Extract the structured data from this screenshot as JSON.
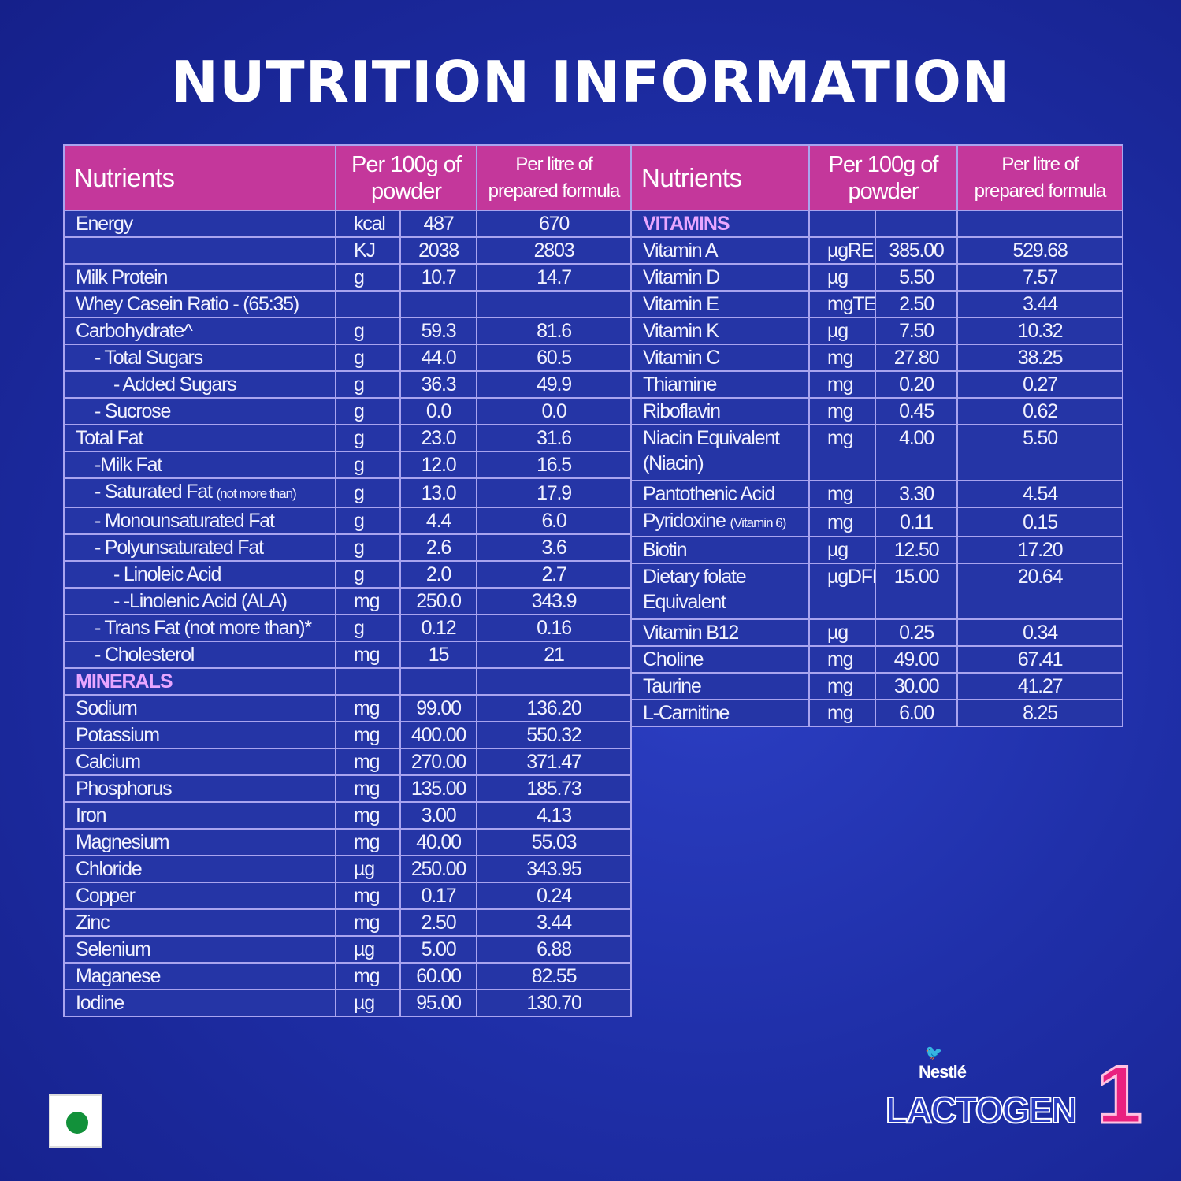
{
  "title": "NUTRITION INFORMATION",
  "headers": {
    "nutrients": "Nutrients",
    "per100g": [
      "Per 100g of",
      "powder"
    ],
    "perLitre": [
      "Per litre of",
      "prepared formula"
    ]
  },
  "left_rows": [
    {
      "name": "Energy",
      "unit": "kcal",
      "per100g": "487",
      "perLitre": "670",
      "level": 0
    },
    {
      "name": "",
      "unit": "KJ",
      "per100g": "2038",
      "perLitre": "2803",
      "level": 0
    },
    {
      "name": "Milk Protein",
      "unit": "g",
      "per100g": "10.7",
      "perLitre": "14.7",
      "level": 0
    },
    {
      "name": "Whey Casein Ratio - (65:35)",
      "unit": "",
      "per100g": "",
      "perLitre": "",
      "level": 0
    },
    {
      "name": "Carbohydrate^",
      "unit": "g",
      "per100g": "59.3",
      "perLitre": "81.6",
      "level": 0
    },
    {
      "name": "- Total Sugars",
      "unit": "g",
      "per100g": "44.0",
      "perLitre": "60.5",
      "level": 1
    },
    {
      "name": "- Added Sugars",
      "unit": "g",
      "per100g": "36.3",
      "perLitre": "49.9",
      "level": 2
    },
    {
      "name": "- Sucrose",
      "unit": "g",
      "per100g": "0.0",
      "perLitre": "0.0",
      "level": 1
    },
    {
      "name": "Total Fat",
      "unit": "g",
      "per100g": "23.0",
      "perLitre": "31.6",
      "level": 0
    },
    {
      "name": "-Milk Fat",
      "unit": "g",
      "per100g": "12.0",
      "perLitre": "16.5",
      "level": 1
    },
    {
      "name": "- Saturated Fat",
      "note": "(not more than)",
      "unit": "g",
      "per100g": "13.0",
      "perLitre": "17.9",
      "level": 1
    },
    {
      "name": "- Monounsaturated Fat",
      "unit": "g",
      "per100g": "4.4",
      "perLitre": "6.0",
      "level": 1
    },
    {
      "name": "- Polyunsaturated Fat",
      "unit": "g",
      "per100g": "2.6",
      "perLitre": "3.6",
      "level": 1
    },
    {
      "name": "- Linoleic Acid",
      "unit": "g",
      "per100g": "2.0",
      "perLitre": "2.7",
      "level": 2
    },
    {
      "name": "-   -Linolenic Acid (ALA)",
      "unit": "mg",
      "per100g": "250.0",
      "perLitre": "343.9",
      "level": 2
    },
    {
      "name": "- Trans Fat (not more than)*",
      "unit": "g",
      "per100g": "0.12",
      "perLitre": "0.16",
      "level": 1
    },
    {
      "name": "- Cholesterol",
      "unit": "mg",
      "per100g": "15",
      "perLitre": "21",
      "level": 1
    },
    {
      "name": "MINERALS",
      "unit": "",
      "per100g": "",
      "perLitre": "",
      "section": true
    },
    {
      "name": "Sodium",
      "unit": "mg",
      "per100g": "99.00",
      "perLitre": "136.20",
      "level": 0
    },
    {
      "name": "Potassium",
      "unit": "mg",
      "per100g": "400.00",
      "perLitre": "550.32",
      "level": 0
    },
    {
      "name": "Calcium",
      "unit": "mg",
      "per100g": "270.00",
      "perLitre": "371.47",
      "level": 0
    },
    {
      "name": "Phosphorus",
      "unit": "mg",
      "per100g": "135.00",
      "perLitre": "185.73",
      "level": 0
    },
    {
      "name": "Iron",
      "unit": "mg",
      "per100g": "3.00",
      "perLitre": "4.13",
      "level": 0
    },
    {
      "name": "Magnesium",
      "unit": "mg",
      "per100g": "40.00",
      "perLitre": "55.03",
      "level": 0
    },
    {
      "name": "Chloride",
      "unit": "µg",
      "per100g": "250.00",
      "perLitre": "343.95",
      "level": 0
    },
    {
      "name": "Copper",
      "unit": "mg",
      "per100g": "0.17",
      "perLitre": "0.24",
      "level": 0
    },
    {
      "name": "Zinc",
      "unit": "mg",
      "per100g": "2.50",
      "perLitre": "3.44",
      "level": 0
    },
    {
      "name": "Selenium",
      "unit": "µg",
      "per100g": "5.00",
      "perLitre": "6.88",
      "level": 0
    },
    {
      "name": "Maganese",
      "unit": "mg",
      "per100g": "60.00",
      "perLitre": "82.55",
      "level": 0
    },
    {
      "name": "Iodine",
      "unit": "µg",
      "per100g": "95.00",
      "perLitre": "130.70",
      "level": 0
    }
  ],
  "right_rows": [
    {
      "name": "VITAMINS",
      "unit": "",
      "per100g": "",
      "perLitre": "",
      "section": true
    },
    {
      "name": "Vitamin A",
      "unit": "µgRE",
      "per100g": "385.00",
      "perLitre": "529.68"
    },
    {
      "name": "Vitamin D",
      "unit": "µg",
      "per100g": "5.50",
      "perLitre": "7.57"
    },
    {
      "name": "Vitamin E",
      "unit": "mgTE",
      "per100g": "2.50",
      "perLitre": "3.44"
    },
    {
      "name": "Vitamin K",
      "unit": "µg",
      "per100g": "7.50",
      "perLitre": "10.32"
    },
    {
      "name": "Vitamin C",
      "unit": "mg",
      "per100g": "27.80",
      "perLitre": "38.25"
    },
    {
      "name": "Thiamine",
      "unit": "mg",
      "per100g": "0.20",
      "perLitre": "0.27"
    },
    {
      "name": "Riboflavin",
      "unit": "mg",
      "per100g": "0.45",
      "perLitre": "0.62"
    },
    {
      "name": "Niacin Equivalent",
      "name2": "(Niacin)",
      "unit": "mg",
      "per100g": "4.00",
      "perLitre": "5.50"
    },
    {
      "name": "Pantothenic Acid",
      "unit": "mg",
      "per100g": "3.30",
      "perLitre": "4.54"
    },
    {
      "name": "Pyridoxine",
      "note": "(Vitamin 6)",
      "unit": "mg",
      "per100g": "0.11",
      "perLitre": "0.15"
    },
    {
      "name": "Biotin",
      "unit": "µg",
      "per100g": "12.50",
      "perLitre": "17.20"
    },
    {
      "name": "Dietary folate",
      "name2": "Equivalent",
      "unit": "µgDFE",
      "per100g": "15.00",
      "perLitre": "20.64"
    },
    {
      "name": "Vitamin B12",
      "unit": "µg",
      "per100g": "0.25",
      "perLitre": "0.34"
    },
    {
      "name": "Choline",
      "unit": "mg",
      "per100g": "49.00",
      "perLitre": "67.41"
    },
    {
      "name": "Taurine",
      "unit": "mg",
      "per100g": "30.00",
      "perLitre": "41.27"
    },
    {
      "name": "L-Carnitine",
      "unit": "mg",
      "per100g": "6.00",
      "perLitre": "8.25"
    }
  ],
  "brand": {
    "maker": "Nestlé",
    "product": "LACTOGEN",
    "stage": "1"
  },
  "colors": {
    "background": "#1f2fa8",
    "header": "#c4379b",
    "cell": "#2535a6",
    "grid": "#a9a4ef",
    "section": "#e8a6ff",
    "veg": "#12913a"
  }
}
